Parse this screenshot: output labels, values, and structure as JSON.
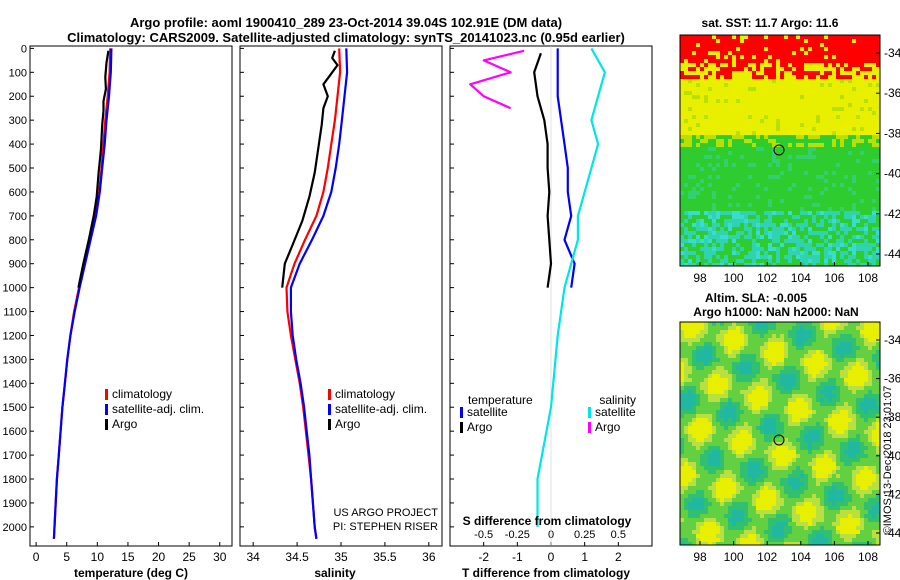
{
  "header": {
    "line1": "Argo profile: aoml 1900410_289 23-Oct-2014 39.04S 102.91E (DM data)",
    "line2": "Climatology: CARS2009. Satellite-adjusted climatology: synTS_20141023.nc (0.95d earlier)"
  },
  "colors": {
    "climatology": "#ff0000",
    "satellite": "#0000ff",
    "argo": "#000000",
    "sat_salinity": "#00e5e5",
    "argo_salinity": "#ff00ff"
  },
  "chart_data": [
    {
      "type": "line",
      "title": "Temperature profile",
      "xlabel": "temperature (deg C)",
      "xlim": [
        -1,
        32
      ],
      "ylim": [
        2080,
        -10
      ],
      "yticks": [
        0,
        100,
        200,
        300,
        400,
        500,
        600,
        700,
        800,
        900,
        1000,
        1100,
        1200,
        1300,
        1400,
        1500,
        1600,
        1700,
        1800,
        1900,
        2000
      ],
      "xticks": [
        0,
        5,
        10,
        15,
        20,
        25,
        30
      ],
      "legend": [
        "climatology",
        "satellite-adj. clim.",
        "Argo"
      ],
      "series": [
        {
          "name": "climatology",
          "color": "#ff0000",
          "points": [
            [
              12.1,
              0
            ],
            [
              12.0,
              100
            ],
            [
              11.7,
              200
            ],
            [
              11.3,
              300
            ],
            [
              11.0,
              400
            ],
            [
              10.7,
              500
            ],
            [
              10.3,
              600
            ],
            [
              9.7,
              700
            ],
            [
              8.8,
              800
            ],
            [
              7.9,
              900
            ],
            [
              7.0,
              1000
            ],
            [
              6.2,
              1100
            ],
            [
              5.6,
              1200
            ],
            [
              5.1,
              1300
            ],
            [
              4.7,
              1400
            ],
            [
              4.3,
              1500
            ],
            [
              4.0,
              1600
            ],
            [
              3.7,
              1700
            ],
            [
              3.4,
              1800
            ],
            [
              3.2,
              1900
            ],
            [
              3.0,
              2000
            ],
            [
              2.9,
              2050
            ]
          ]
        },
        {
          "name": "satellite-adj. clim.",
          "color": "#0000ff",
          "points": [
            [
              12.3,
              0
            ],
            [
              12.2,
              100
            ],
            [
              11.9,
              200
            ],
            [
              11.5,
              300
            ],
            [
              11.2,
              400
            ],
            [
              10.8,
              500
            ],
            [
              10.4,
              600
            ],
            [
              9.8,
              700
            ],
            [
              8.9,
              800
            ],
            [
              8.0,
              900
            ],
            [
              7.1,
              1000
            ],
            [
              6.3,
              1100
            ],
            [
              5.6,
              1200
            ],
            [
              5.1,
              1300
            ],
            [
              4.7,
              1400
            ],
            [
              4.3,
              1500
            ],
            [
              4.0,
              1600
            ],
            [
              3.7,
              1700
            ],
            [
              3.4,
              1800
            ],
            [
              3.2,
              1900
            ],
            [
              3.0,
              2000
            ],
            [
              2.9,
              2050
            ]
          ]
        },
        {
          "name": "Argo",
          "color": "#000000",
          "points": [
            [
              11.8,
              10
            ],
            [
              11.5,
              60
            ],
            [
              11.3,
              120
            ],
            [
              11.4,
              170
            ],
            [
              11.0,
              220
            ],
            [
              11.0,
              260
            ],
            [
              10.8,
              320
            ],
            [
              10.6,
              420
            ],
            [
              10.2,
              520
            ],
            [
              9.9,
              620
            ],
            [
              9.4,
              700
            ],
            [
              8.6,
              800
            ],
            [
              7.7,
              900
            ],
            [
              6.9,
              1000
            ]
          ]
        }
      ]
    },
    {
      "type": "line",
      "title": "Salinity profile",
      "xlabel": "salinity",
      "xlim": [
        33.85,
        36.15
      ],
      "ylim": [
        2080,
        -10
      ],
      "xticks": [
        34,
        34.5,
        35,
        35.5,
        36
      ],
      "legend": [
        "climatology",
        "satellite-adj. clim.",
        "Argo"
      ],
      "series": [
        {
          "name": "climatology",
          "color": "#ff0000",
          "points": [
            [
              34.98,
              0
            ],
            [
              34.99,
              100
            ],
            [
              34.96,
              200
            ],
            [
              34.93,
              300
            ],
            [
              34.89,
              400
            ],
            [
              34.85,
              500
            ],
            [
              34.8,
              600
            ],
            [
              34.72,
              700
            ],
            [
              34.59,
              800
            ],
            [
              34.47,
              900
            ],
            [
              34.38,
              1000
            ],
            [
              34.39,
              1100
            ],
            [
              34.43,
              1200
            ],
            [
              34.48,
              1300
            ],
            [
              34.53,
              1400
            ],
            [
              34.57,
              1500
            ],
            [
              34.6,
              1600
            ],
            [
              34.63,
              1700
            ],
            [
              34.66,
              1800
            ],
            [
              34.68,
              1900
            ],
            [
              34.7,
              2000
            ],
            [
              34.72,
              2050
            ]
          ]
        },
        {
          "name": "satellite-adj. clim.",
          "color": "#0000ff",
          "points": [
            [
              35.06,
              0
            ],
            [
              35.07,
              100
            ],
            [
              35.04,
              200
            ],
            [
              35.01,
              300
            ],
            [
              34.98,
              400
            ],
            [
              34.94,
              500
            ],
            [
              34.89,
              600
            ],
            [
              34.8,
              700
            ],
            [
              34.67,
              800
            ],
            [
              34.53,
              900
            ],
            [
              34.43,
              1000
            ],
            [
              34.43,
              1100
            ],
            [
              34.45,
              1200
            ],
            [
              34.49,
              1300
            ],
            [
              34.54,
              1400
            ],
            [
              34.58,
              1500
            ],
            [
              34.61,
              1600
            ],
            [
              34.64,
              1700
            ],
            [
              34.66,
              1800
            ],
            [
              34.68,
              1900
            ],
            [
              34.7,
              2000
            ],
            [
              34.72,
              2050
            ]
          ]
        },
        {
          "name": "Argo",
          "color": "#000000",
          "points": [
            [
              34.93,
              10
            ],
            [
              34.9,
              40
            ],
            [
              34.96,
              70
            ],
            [
              34.88,
              110
            ],
            [
              34.8,
              150
            ],
            [
              34.85,
              200
            ],
            [
              34.8,
              250
            ],
            [
              34.78,
              320
            ],
            [
              34.74,
              420
            ],
            [
              34.7,
              520
            ],
            [
              34.64,
              620
            ],
            [
              34.56,
              720
            ],
            [
              34.45,
              820
            ],
            [
              34.36,
              900
            ],
            [
              34.33,
              1000
            ]
          ]
        }
      ]
    },
    {
      "type": "line",
      "title": "Difference from climatology",
      "xlabel": "T difference from climatology",
      "xlabel2": "S difference from climatology",
      "xlim": [
        -3,
        3
      ],
      "xlim_salinity": [
        -0.75,
        0.75
      ],
      "ylim": [
        2080,
        -10
      ],
      "xticks": [
        -2,
        -1,
        0,
        1,
        2
      ],
      "xticks_salinity_labels": [
        "-0.5",
        "-0.25",
        "0",
        "0.25",
        "0.5"
      ],
      "legend_temperature_title": "temperature",
      "legend_salinity_title": "salinity",
      "legend": [
        "satellite",
        "Argo",
        "satellite",
        "Argo"
      ],
      "series": [
        {
          "name": "temperature satellite",
          "color": "#0000ff",
          "points": [
            [
              0.2,
              0
            ],
            [
              0.2,
              100
            ],
            [
              0.2,
              200
            ],
            [
              0.3,
              300
            ],
            [
              0.4,
              400
            ],
            [
              0.5,
              500
            ],
            [
              0.5,
              600
            ],
            [
              0.6,
              700
            ],
            [
              0.4,
              800
            ],
            [
              0.7,
              900
            ],
            [
              0.6,
              1000
            ]
          ]
        },
        {
          "name": "salinity satellite",
          "color": "#00e5e5",
          "points": [
            [
              0.3,
              0
            ],
            [
              0.4,
              100
            ],
            [
              0.35,
              200
            ],
            [
              0.3,
              300
            ],
            [
              0.35,
              400
            ],
            [
              0.3,
              500
            ],
            [
              0.25,
              600
            ],
            [
              0.2,
              700
            ],
            [
              0.2,
              800
            ],
            [
              0.15,
              900
            ],
            [
              0.1,
              1000
            ],
            [
              0.05,
              1200
            ],
            [
              0.0,
              1500
            ],
            [
              -0.1,
              1800
            ],
            [
              -0.1,
              2000
            ]
          ]
        },
        {
          "name": "temperature Argo",
          "color": "#000000",
          "points": [
            [
              -0.3,
              20
            ],
            [
              -0.5,
              100
            ],
            [
              -0.4,
              200
            ],
            [
              -0.2,
              300
            ],
            [
              -0.1,
              400
            ],
            [
              -0.1,
              500
            ],
            [
              -0.05,
              600
            ],
            [
              -0.1,
              700
            ],
            [
              -0.05,
              800
            ],
            [
              0.0,
              900
            ],
            [
              -0.1,
              1000
            ]
          ]
        },
        {
          "name": "salinity Argo",
          "color": "#ff00ff",
          "points": [
            [
              -0.2,
              10
            ],
            [
              -0.5,
              50
            ],
            [
              -0.3,
              100
            ],
            [
              -0.6,
              150
            ],
            [
              -0.5,
              200
            ],
            [
              -0.3,
              250
            ]
          ]
        }
      ]
    },
    {
      "type": "heatmap",
      "title": "sat. SST: 11.7 Argo: 11.6",
      "xticks": [
        98,
        100,
        102,
        104,
        106,
        108
      ],
      "yticks": [
        -34,
        -36,
        -38,
        -40,
        -42,
        -44
      ],
      "marker": [
        102.91,
        -39.04
      ]
    },
    {
      "type": "heatmap",
      "title": "Altim. SLA: -0.005",
      "subtitle": "Argo h1000: NaN h2000: NaN",
      "xticks": [
        98,
        100,
        102,
        104,
        106,
        108
      ],
      "yticks": [
        -34,
        -36,
        -38,
        -40,
        -42,
        -44
      ],
      "marker": [
        102.91,
        -39.04
      ]
    }
  ],
  "credits": {
    "line1": "US ARGO PROJECT",
    "line2": "PI: STEPHEN RISER"
  },
  "side_text": "©IMOS 13-Dec-2018 23:01:07"
}
